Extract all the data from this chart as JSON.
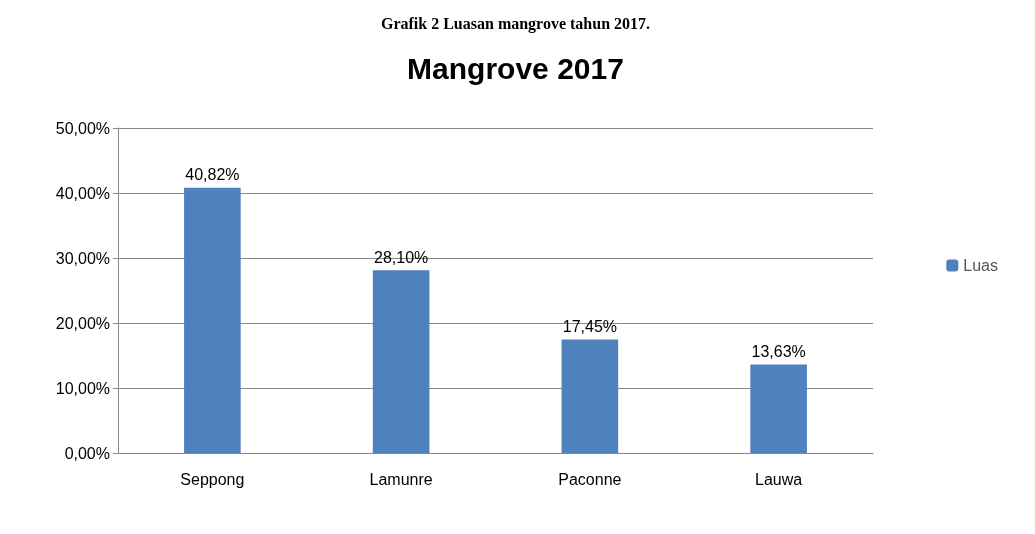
{
  "chart_data": {
    "type": "bar",
    "title": "Mangrove 2017",
    "annotations": [
      "Grafik 2 Luasan mangrove tahun 2017."
    ],
    "categories": [
      "Seppong",
      "Lamunre",
      "Paconne",
      "Lauwa"
    ],
    "series": [
      {
        "name": "Luas",
        "color": "#4f81bd",
        "values": [
          40.82,
          28.1,
          17.45,
          13.63
        ],
        "value_labels": [
          "40,82%",
          "28,10%",
          "17,45%",
          "13,63%"
        ]
      }
    ],
    "ylim": [
      0,
      50
    ],
    "yticks": [
      {
        "value": 0,
        "label": "0,00%"
      },
      {
        "value": 10,
        "label": "10,00%"
      },
      {
        "value": 20,
        "label": "20,00%"
      },
      {
        "value": 30,
        "label": "30,00%"
      },
      {
        "value": 40,
        "label": "40,00%"
      },
      {
        "value": 50,
        "label": "50,00%"
      }
    ],
    "grid": "y",
    "legend": "right"
  }
}
